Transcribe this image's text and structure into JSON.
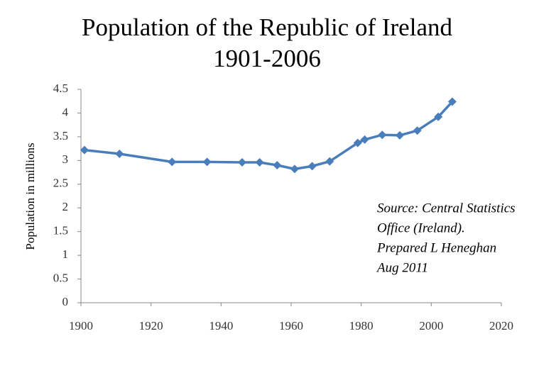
{
  "chart_data": {
    "type": "line",
    "title": [
      "Population of the Republic of Ireland",
      "1901-2006"
    ],
    "y_label": "Population in millions",
    "annotation": [
      "Source: Central Statistics",
      "Office (Ireland).",
      "Prepared L Heneghan",
      "Aug 2011"
    ],
    "x": [
      1901,
      1911,
      1926,
      1936,
      1946,
      1951,
      1956,
      1961,
      1966,
      1971,
      1979,
      1981,
      1986,
      1991,
      1996,
      2002,
      2006
    ],
    "values": [
      3.22,
      3.14,
      2.97,
      2.97,
      2.96,
      2.96,
      2.9,
      2.82,
      2.88,
      2.98,
      3.37,
      3.44,
      3.54,
      3.53,
      3.63,
      3.92,
      4.24
    ],
    "color": "#4a7ebb",
    "xlim": [
      1900,
      2020
    ],
    "xticks": [
      1900,
      1920,
      1940,
      1960,
      1980,
      2000,
      2020
    ],
    "ylim": [
      0,
      4.5
    ],
    "yticks": [
      0,
      0.5,
      1,
      1.5,
      2,
      2.5,
      3,
      3.5,
      4,
      4.5
    ],
    "grid": false
  }
}
